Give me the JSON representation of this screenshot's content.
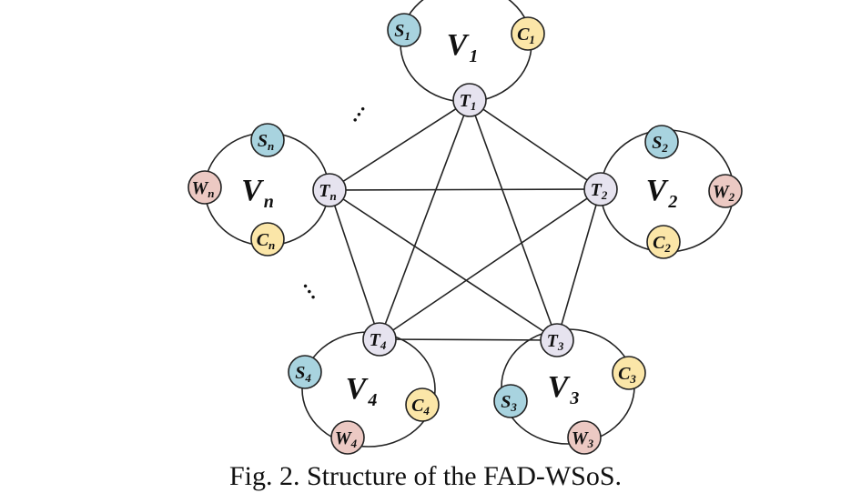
{
  "caption": "Fig. 2. Structure of the FAD-WSoS.",
  "colors": {
    "S": "#a8d3df",
    "C": "#fbe6a8",
    "W": "#ecc9c3",
    "T": "#e6e3ef",
    "stroke": "#222222"
  },
  "continuation_mark": "…",
  "clusters": [
    {
      "id": "v1",
      "main": "V",
      "sub": "1",
      "nodes": [
        {
          "id": "t1",
          "type": "T",
          "main": "T",
          "sub": "1"
        },
        {
          "id": "s1",
          "type": "S",
          "main": "S",
          "sub": "1"
        },
        {
          "id": "c1",
          "type": "C",
          "main": "C",
          "sub": "1"
        }
      ]
    },
    {
      "id": "v2",
      "main": "V",
      "sub": "2",
      "nodes": [
        {
          "id": "t2",
          "type": "T",
          "main": "T",
          "sub": "2"
        },
        {
          "id": "s2",
          "type": "S",
          "main": "S",
          "sub": "2"
        },
        {
          "id": "w2",
          "type": "W",
          "main": "W",
          "sub": "2"
        },
        {
          "id": "c2",
          "type": "C",
          "main": "C",
          "sub": "2"
        }
      ]
    },
    {
      "id": "v3",
      "main": "V",
      "sub": "3",
      "nodes": [
        {
          "id": "t3",
          "type": "T",
          "main": "T",
          "sub": "3"
        },
        {
          "id": "c3",
          "type": "C",
          "main": "C",
          "sub": "3"
        },
        {
          "id": "w3",
          "type": "W",
          "main": "W",
          "sub": "3"
        },
        {
          "id": "s3",
          "type": "S",
          "main": "S",
          "sub": "3"
        }
      ]
    },
    {
      "id": "v4",
      "main": "V",
      "sub": "4",
      "nodes": [
        {
          "id": "t4",
          "type": "T",
          "main": "T",
          "sub": "4"
        },
        {
          "id": "s4",
          "type": "S",
          "main": "S",
          "sub": "4"
        },
        {
          "id": "c4",
          "type": "C",
          "main": "C",
          "sub": "4"
        },
        {
          "id": "w4",
          "type": "W",
          "main": "W",
          "sub": "4"
        }
      ]
    },
    {
      "id": "vn",
      "main": "V",
      "sub": "n",
      "nodes": [
        {
          "id": "tn",
          "type": "T",
          "main": "T",
          "sub": "n"
        },
        {
          "id": "sn",
          "type": "S",
          "main": "S",
          "sub": "n"
        },
        {
          "id": "wn",
          "type": "W",
          "main": "W",
          "sub": "n"
        },
        {
          "id": "cn",
          "type": "C",
          "main": "C",
          "sub": "n"
        }
      ]
    }
  ],
  "links": [
    [
      "t1",
      "t2"
    ],
    [
      "t1",
      "t3"
    ],
    [
      "t1",
      "t4"
    ],
    [
      "t1",
      "tn"
    ],
    [
      "t2",
      "t3"
    ],
    [
      "t2",
      "t4"
    ],
    [
      "t2",
      "tn"
    ],
    [
      "t3",
      "t4"
    ],
    [
      "t3",
      "tn"
    ],
    [
      "t4",
      "tn"
    ]
  ]
}
